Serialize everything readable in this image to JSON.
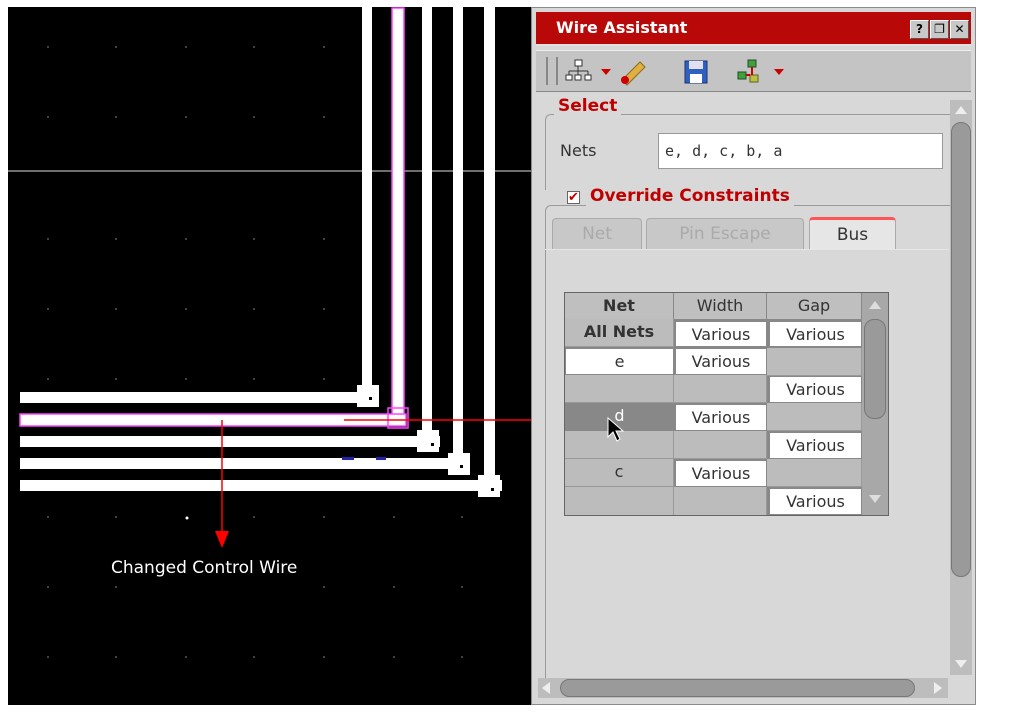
{
  "canvas": {
    "callout_label": "Changed Control Wire"
  },
  "panel": {
    "title": "Wire Assistant",
    "title_buttons": [
      "?",
      "❐",
      "✕"
    ],
    "toolbar_icons": [
      "hierarchy-icon",
      "ruler-icon",
      "save-icon",
      "nets-icon"
    ],
    "select": {
      "title": "Select",
      "nets_label": "Nets",
      "nets_value": "e, d, c, b, a"
    },
    "override": {
      "title": "Override Constraints",
      "checked": true
    },
    "tabs": [
      {
        "label": "Net",
        "active": false
      },
      {
        "label": "Pin Escape",
        "active": false
      },
      {
        "label": "Bus",
        "active": true
      }
    ],
    "grid": {
      "headers": [
        "Net",
        "Width",
        "Gap"
      ],
      "rows": [
        {
          "net": "All Nets",
          "width": "Various",
          "gap": "Various"
        },
        {
          "net": "e",
          "width": "Various",
          "gap": ""
        },
        {
          "net": "",
          "width": "",
          "gap": "Various"
        },
        {
          "net": "d",
          "width": "Various",
          "gap": ""
        },
        {
          "net": "",
          "width": "",
          "gap": "Various"
        },
        {
          "net": "c",
          "width": "Various",
          "gap": ""
        },
        {
          "net": "",
          "width": "",
          "gap": "Various"
        }
      ]
    },
    "colors": {
      "title_bar": "#b80808",
      "group_title": "#c00000",
      "highlight_wire": "#ff44ff",
      "arrow": "#ff0000"
    }
  }
}
